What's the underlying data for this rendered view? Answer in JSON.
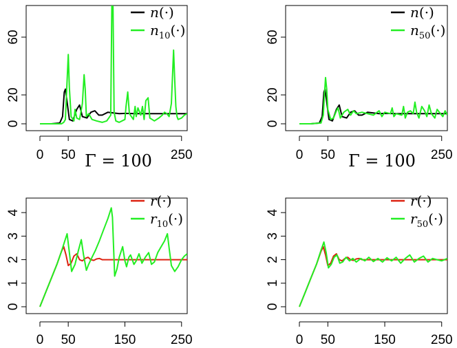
{
  "gamma_labels": [
    "Γ = 100",
    "Γ = 100"
  ],
  "chart_data": [
    {
      "type": "line",
      "panel": "top-left",
      "xlim": [
        0,
        260
      ],
      "ylim": [
        0,
        80
      ],
      "xticks": [
        0,
        50,
        250
      ],
      "yticks": [
        0,
        20,
        60
      ],
      "legend": [
        {
          "base": "n",
          "sub": "",
          "arg": "(·)",
          "color": "#000000"
        },
        {
          "base": "n",
          "sub": "10",
          "arg": "(·)",
          "color": "#22ee22"
        }
      ],
      "series": [
        {
          "name": "n(·)",
          "color": "#000000",
          "x": [
            0,
            20,
            35,
            40,
            43,
            45,
            47,
            52,
            58,
            65,
            70,
            75,
            83,
            90,
            97,
            104,
            110,
            120,
            130,
            140,
            150,
            170,
            200,
            230,
            260
          ],
          "y": [
            0,
            0,
            0.5,
            5,
            22,
            24,
            18,
            3,
            2,
            10,
            13,
            5,
            4,
            8,
            9,
            6,
            6,
            8,
            7.5,
            7,
            7.2,
            7,
            7,
            7,
            7
          ]
        },
        {
          "name": "n10(·)",
          "color": "#22ee22",
          "x": [
            0,
            20,
            38,
            42,
            45,
            48,
            50,
            52,
            55,
            60,
            62,
            65,
            70,
            75,
            78,
            80,
            82,
            86,
            92,
            100,
            110,
            118,
            125,
            127,
            129,
            131,
            134,
            140,
            150,
            152,
            155,
            158,
            165,
            168,
            170,
            173,
            178,
            181,
            184,
            187,
            191,
            194,
            198,
            202,
            210,
            216,
            220,
            224,
            228,
            232,
            236,
            238,
            240,
            242,
            244,
            250,
            255,
            260
          ],
          "y": [
            0,
            0,
            0,
            1,
            3,
            30,
            48,
            25,
            5,
            2,
            10,
            4,
            3,
            14,
            34,
            24,
            5,
            7,
            3,
            2,
            1,
            2,
            6,
            82,
            81,
            8,
            2,
            1,
            3,
            12,
            22,
            7,
            3,
            12,
            5,
            11,
            6,
            12,
            3,
            16,
            18,
            4,
            3,
            2,
            4,
            6,
            8,
            7,
            5,
            14,
            51,
            30,
            12,
            5,
            3,
            4,
            6,
            7
          ]
        }
      ]
    },
    {
      "type": "line",
      "panel": "top-right",
      "xlim": [
        0,
        260
      ],
      "ylim": [
        0,
        80
      ],
      "xticks": [
        0,
        50,
        250
      ],
      "yticks": [
        0,
        20,
        60
      ],
      "legend": [
        {
          "base": "n",
          "sub": "",
          "arg": "(·)",
          "color": "#000000"
        },
        {
          "base": "n",
          "sub": "50",
          "arg": "(·)",
          "color": "#22ee22"
        }
      ],
      "series": [
        {
          "name": "n(·)",
          "color": "#000000",
          "x": [
            0,
            20,
            35,
            40,
            43,
            45,
            47,
            52,
            58,
            65,
            70,
            75,
            83,
            90,
            97,
            104,
            110,
            120,
            130,
            140,
            150,
            170,
            200,
            230,
            260
          ],
          "y": [
            0,
            0,
            0.5,
            5,
            22,
            24,
            18,
            3,
            2,
            10,
            13,
            5,
            4,
            8,
            9,
            6,
            6,
            8,
            7.5,
            7,
            7.2,
            7,
            7,
            7,
            7
          ]
        },
        {
          "name": "n50(·)",
          "color": "#22ee22",
          "x": [
            0,
            20,
            38,
            42,
            44,
            46,
            48,
            50,
            55,
            60,
            65,
            68,
            72,
            78,
            85,
            90,
            95,
            100,
            110,
            120,
            130,
            140,
            145,
            150,
            160,
            163,
            166,
            170,
            180,
            183,
            186,
            190,
            195,
            200,
            203,
            206,
            210,
            215,
            220,
            224,
            228,
            232,
            238,
            242,
            246,
            252,
            256,
            260
          ],
          "y": [
            0,
            0,
            0.5,
            6,
            20,
            32,
            24,
            10,
            3,
            4,
            9,
            11,
            4,
            8,
            10,
            6,
            9,
            7,
            8,
            7,
            6,
            9,
            5,
            8,
            7,
            11,
            5,
            7,
            6,
            12,
            4,
            8,
            9,
            7,
            15,
            8,
            4,
            12,
            9,
            5,
            13,
            7,
            4,
            10,
            8,
            5,
            9,
            6
          ]
        }
      ]
    },
    {
      "type": "line",
      "panel": "bottom-left",
      "xlim": [
        0,
        260
      ],
      "ylim": [
        0,
        4.5
      ],
      "xticks": [
        0,
        50,
        150,
        250
      ],
      "yticks": [
        0,
        1,
        2,
        3,
        4
      ],
      "legend": [
        {
          "base": "r",
          "sub": "",
          "arg": "(·)",
          "color": "#dd2211"
        },
        {
          "base": "r",
          "sub": "10",
          "arg": "(·)",
          "color": "#22ee22"
        }
      ],
      "series": [
        {
          "name": "r(·)",
          "color": "#dd2211",
          "x": [
            0,
            10,
            20,
            30,
            38,
            42,
            46,
            50,
            55,
            60,
            65,
            70,
            75,
            80,
            85,
            90,
            95,
            100,
            105,
            110,
            120,
            140,
            160,
            200,
            260
          ],
          "y": [
            0,
            0.6,
            1.2,
            1.8,
            2.35,
            2.55,
            2.2,
            1.75,
            1.85,
            2.15,
            2.25,
            2.0,
            1.95,
            2.05,
            2.1,
            2.0,
            1.97,
            2.03,
            2.05,
            2.0,
            2.0,
            2.0,
            2.0,
            2.0,
            2.0
          ]
        },
        {
          "name": "r10(·)",
          "color": "#22ee22",
          "x": [
            0,
            10,
            20,
            30,
            38,
            44,
            48,
            52,
            56,
            62,
            68,
            73,
            77,
            82,
            86,
            92,
            98,
            105,
            112,
            120,
            126,
            128,
            132,
            136,
            140,
            146,
            150,
            153,
            157,
            160,
            166,
            170,
            175,
            180,
            186,
            192,
            197,
            202,
            208,
            214,
            220,
            225,
            228,
            232,
            238,
            244,
            250,
            255,
            260
          ],
          "y": [
            0,
            0.6,
            1.2,
            1.8,
            2.35,
            2.8,
            3.1,
            2.3,
            1.5,
            1.8,
            2.4,
            2.85,
            2.2,
            1.55,
            1.8,
            2.1,
            2.4,
            2.8,
            3.25,
            3.75,
            4.2,
            3.8,
            1.3,
            1.6,
            2.1,
            2.55,
            1.95,
            1.7,
            2.1,
            2.2,
            1.8,
            1.95,
            2.25,
            1.85,
            2.1,
            2.3,
            1.8,
            1.9,
            2.3,
            2.55,
            2.8,
            3.1,
            2.5,
            1.75,
            1.5,
            1.7,
            2.0,
            2.15,
            2.25
          ]
        }
      ]
    },
    {
      "type": "line",
      "panel": "bottom-right",
      "xlim": [
        0,
        260
      ],
      "ylim": [
        0,
        4.5
      ],
      "xticks": [
        0,
        50,
        150,
        250
      ],
      "yticks": [
        0,
        1,
        2,
        3,
        4
      ],
      "legend": [
        {
          "base": "r",
          "sub": "",
          "arg": "(·)",
          "color": "#dd2211"
        },
        {
          "base": "r",
          "sub": "50",
          "arg": "(·)",
          "color": "#22ee22"
        }
      ],
      "series": [
        {
          "name": "r(·)",
          "color": "#dd2211",
          "x": [
            0,
            10,
            20,
            30,
            38,
            42,
            46,
            50,
            55,
            60,
            65,
            70,
            75,
            80,
            85,
            90,
            95,
            100,
            105,
            110,
            120,
            140,
            160,
            200,
            260
          ],
          "y": [
            0,
            0.6,
            1.2,
            1.8,
            2.35,
            2.55,
            2.2,
            1.75,
            1.85,
            2.15,
            2.25,
            2.0,
            1.95,
            2.05,
            2.1,
            2.0,
            1.97,
            2.03,
            2.05,
            2.0,
            2.0,
            2.0,
            2.0,
            2.0,
            2.0
          ]
        },
        {
          "name": "r50(·)",
          "color": "#22ee22",
          "x": [
            0,
            10,
            20,
            30,
            38,
            43,
            47,
            51,
            56,
            61,
            66,
            71,
            76,
            82,
            88,
            94,
            100,
            108,
            115,
            122,
            130,
            138,
            146,
            154,
            162,
            170,
            178,
            186,
            194,
            202,
            210,
            218,
            226,
            234,
            242,
            250,
            260
          ],
          "y": [
            0,
            0.6,
            1.2,
            1.8,
            2.4,
            2.75,
            2.3,
            1.65,
            1.8,
            2.1,
            2.2,
            1.85,
            1.9,
            2.1,
            1.95,
            2.05,
            1.9,
            2.05,
            1.95,
            2.1,
            1.92,
            2.05,
            1.9,
            2.08,
            1.95,
            2.1,
            1.85,
            2.05,
            2.2,
            1.9,
            2.05,
            2.15,
            1.9,
            2.05,
            2.0,
            1.95,
            2.05
          ]
        }
      ]
    }
  ]
}
